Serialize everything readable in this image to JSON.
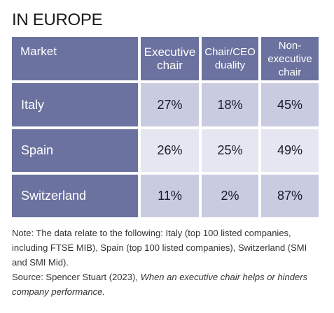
{
  "header": {
    "title": "IN EUROPE"
  },
  "table": {
    "columns": [
      "Market",
      "Executive chair",
      "Chair/CEO duality",
      "Non-executive chair"
    ],
    "rows": [
      [
        "Italy",
        "27%",
        "18%",
        "45%"
      ],
      [
        "Spain",
        "26%",
        "25%",
        "49%"
      ],
      [
        "Switzerland",
        "11%",
        "2%",
        "87%"
      ]
    ]
  },
  "notes": {
    "note": "Note: The data relate to the following: Italy (top 100 listed companies, including FTSE MIB), Spain (top 100 listed companies), Switzerland (SMI and SMI Mid).",
    "source_prefix": "Source: Spencer Stuart (2023),",
    "source_title": "When an executive chair helps or hinders company performance."
  }
}
